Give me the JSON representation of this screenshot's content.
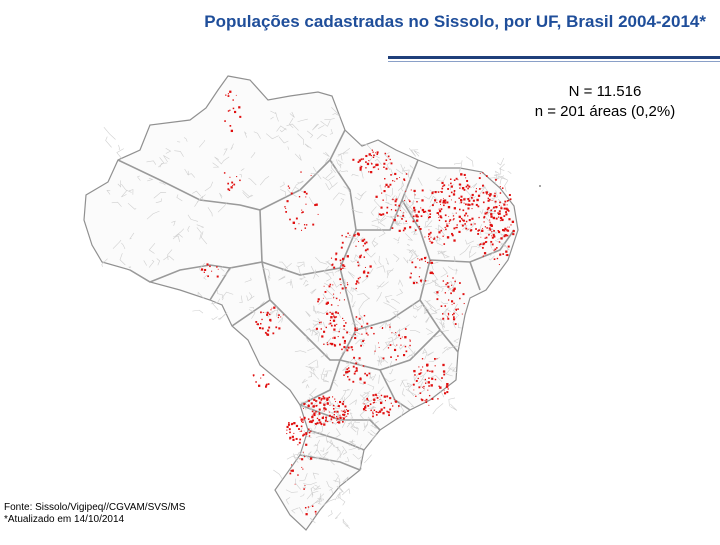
{
  "title": "Populações cadastradas no Sissolo, por UF, Brasil 2004-2014*",
  "stats": {
    "total": "N = 11.516",
    "areas": "n = 201 áreas (0,2%)"
  },
  "footnote": {
    "source": "Fonte: Sissolo/Vigipeq//CGVAM/SVS/MS",
    "updated": "*Atualizado em 14/10/2014"
  },
  "colors": {
    "title": "#1F4E9A",
    "rule": "#1F3F7A",
    "border": "#b4b4b4",
    "points": "#e01010"
  },
  "map": {
    "type": "point-distribution",
    "region": "Brasil",
    "symbol": "red dots"
  }
}
